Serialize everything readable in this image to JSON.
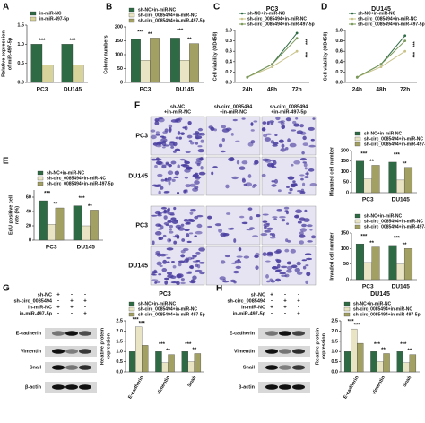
{
  "figure": {
    "panel_labels": [
      "A",
      "B",
      "C",
      "D",
      "E",
      "F",
      "G",
      "H"
    ],
    "f_columns": [
      [
        "sh-NC",
        "+in-miR-NC"
      ],
      [
        "sh-circ_0085494",
        "+in-miR-NC"
      ],
      [
        "sh-circ_0085494",
        "+in-miR-497-5p"
      ]
    ],
    "f_rows": [
      "PC3",
      "DU145",
      "PC3",
      "DU145"
    ],
    "blots": [
      {
        "rows": [
          {
            "label": "sh-NC",
            "signs": [
              "+",
              "-",
              "-"
            ]
          },
          {
            "label": "sh-circ_0085494",
            "signs": [
              "-",
              "+",
              "+"
            ]
          },
          {
            "label": "in-miR-NC",
            "signs": [
              "+",
              "+",
              "-"
            ]
          },
          {
            "label": "in-miR-497-5p",
            "signs": [
              "-",
              "-",
              "+"
            ]
          }
        ],
        "proteins": [
          "E-cadherin",
          "Vimentin",
          "Snail",
          "β-actin"
        ]
      },
      {
        "rows": [
          {
            "label": "sh-NC",
            "signs": [
              "+",
              "-",
              "-"
            ]
          },
          {
            "label": "sh-circ_0085494",
            "signs": [
              "-",
              "+",
              "+"
            ]
          },
          {
            "label": "in-miR-NC",
            "signs": [
              "+",
              "+",
              "-"
            ]
          },
          {
            "label": "in-miR-497-5p",
            "signs": [
              "-",
              "-",
              "+"
            ]
          }
        ],
        "proteins": [
          "E-cadherin",
          "Vimentin",
          "Snail",
          "β-actin"
        ]
      }
    ]
  },
  "chart_data": [
    {
      "type": "bar",
      "ylabel": [
        "Relative expression",
        "of miR-497-5p"
      ],
      "categories": [
        "PC3",
        "DU145"
      ],
      "series": [
        {
          "name": "in-miR-NC",
          "color": "#2e6a44",
          "values": [
            1.0,
            1.0
          ]
        },
        {
          "name": "in-miR-497-5p",
          "color": "#d8d39a",
          "values": [
            0.45,
            0.45
          ]
        }
      ],
      "ylim": [
        0,
        1.5
      ],
      "yticks": [
        {
          "value": 0,
          "label": "0.0"
        },
        0.5,
        {
          "value": 1,
          "label": "1.0"
        },
        1.5
      ],
      "annotations": [
        "***",
        "***"
      ]
    },
    {
      "type": "bar",
      "ylabel": "Colony numbers",
      "categories": [
        "PC3",
        "DU145"
      ],
      "series": [
        {
          "name": "sh-NC+in-miR-NC",
          "color": "#2e6a44",
          "values": [
            155,
            160
          ]
        },
        {
          "name": "sh-circ_0085494+in-miR-NC",
          "color": "#e8e4c4",
          "values": [
            80,
            80
          ]
        },
        {
          "name": "sh-circ_0085494+in-miR-497-5p",
          "color": "#a3a064",
          "values": [
            160,
            140
          ]
        }
      ],
      "ylim": [
        0,
        200
      ],
      "yticks": [
        0,
        50,
        100,
        150,
        200
      ],
      "annotations": [
        "***",
        "**",
        "***",
        "**"
      ]
    },
    {
      "type": "line",
      "title": "PC3",
      "ylabel": "Cell viability (OD450)",
      "categories": [
        "24h",
        "48h",
        "72h"
      ],
      "series": [
        {
          "name": "sh-NC+in-miR-NC",
          "color": "#2e6a44",
          "values": [
            0.1,
            0.35,
            0.95
          ]
        },
        {
          "name": "sh-circ_0085494+in-miR-NC",
          "color": "#c9c38a",
          "values": [
            0.1,
            0.3,
            0.6
          ]
        },
        {
          "name": "sh-circ_0085494+in-miR-497-5p",
          "color": "#7c9a5c",
          "values": [
            0.1,
            0.35,
            0.85
          ]
        }
      ],
      "ylim": [
        0,
        1.0
      ],
      "yticks": [
        {
          "value": 0,
          "label": "0.0"
        },
        0.2,
        0.4,
        0.6,
        0.8,
        {
          "value": 1,
          "label": "1.0"
        }
      ],
      "annotations": [
        "***",
        "***"
      ]
    },
    {
      "type": "line",
      "title": "DU145",
      "ylabel": "Cell viability (OD450)",
      "categories": [
        "24h",
        "48h",
        "72h"
      ],
      "series": [
        {
          "name": "sh-NC+in-miR-NC",
          "color": "#2e6a44",
          "values": [
            0.1,
            0.35,
            0.9
          ]
        },
        {
          "name": "sh-circ_0085494+in-miR-NC",
          "color": "#c9c38a",
          "values": [
            0.1,
            0.3,
            0.6
          ]
        },
        {
          "name": "sh-circ_0085494+in-miR-497-5p",
          "color": "#7c9a5c",
          "values": [
            0.1,
            0.35,
            0.8
          ]
        }
      ],
      "ylim": [
        0,
        1.0
      ],
      "yticks": [
        {
          "value": 0,
          "label": "0.0"
        },
        0.2,
        0.4,
        0.6,
        0.8,
        {
          "value": 1,
          "label": "1.0"
        }
      ],
      "annotations": [
        "***",
        "***"
      ]
    },
    {
      "type": "bar",
      "ylabel": [
        "EdU positive cell",
        "rate (%)"
      ],
      "categories": [
        "PC3",
        "DU145"
      ],
      "series": [
        {
          "name": "sh-NC+in-miR-NC",
          "color": "#2e6a44",
          "values": [
            55,
            48
          ]
        },
        {
          "name": "sh-circ_0085494+in-miR-NC",
          "color": "#e8e4c4",
          "values": [
            22,
            20
          ]
        },
        {
          "name": "sh-circ_0085494+in-miR-497-5p",
          "color": "#a3a064",
          "values": [
            45,
            42
          ]
        }
      ],
      "ylim": [
        0,
        70
      ],
      "yticks": [
        0,
        20,
        40,
        60
      ],
      "annotations": [
        "***",
        "**",
        "***",
        "**"
      ]
    },
    {
      "type": "bar",
      "ylabel": "Migrated cell number",
      "categories": [
        "PC3",
        "DU145"
      ],
      "series": [
        {
          "name": "sh-NC+in-miR-NC",
          "color": "#2e6a44",
          "values": [
            150,
            145
          ]
        },
        {
          "name": "sh-circ_0085494+in-miR-NC",
          "color": "#e8e4c4",
          "values": [
            65,
            60
          ]
        },
        {
          "name": "sh-circ_0085494+in-miR-497-5p",
          "color": "#a3a064",
          "values": [
            130,
            120
          ]
        }
      ],
      "ylim": [
        0,
        200
      ],
      "yticks": [
        0,
        50,
        100,
        150,
        200
      ],
      "annotations": [
        "***",
        "**",
        "***",
        "**"
      ]
    },
    {
      "type": "bar",
      "ylabel": "Invaded cell number",
      "categories": [
        "PC3",
        "DU145"
      ],
      "series": [
        {
          "name": "sh-NC+in-miR-NC",
          "color": "#2e6a44",
          "values": [
            115,
            110
          ]
        },
        {
          "name": "sh-circ_0085494+in-miR-NC",
          "color": "#e8e4c4",
          "values": [
            55,
            50
          ]
        },
        {
          "name": "sh-circ_0085494+in-miR-497-5p",
          "color": "#a3a064",
          "values": [
            105,
            100
          ]
        }
      ],
      "ylim": [
        0,
        150
      ],
      "yticks": [
        0,
        50,
        100,
        150
      ],
      "annotations": [
        "***",
        "**",
        "***",
        "**"
      ]
    },
    {
      "type": "bar",
      "title": "PC3",
      "ylabel": [
        "Relative protein",
        "expression"
      ],
      "categories": [
        "E-cadherin",
        "Vimentin",
        "Snail"
      ],
      "series": [
        {
          "name": "sh-NC+in-miR-NC",
          "color": "#2e6a44",
          "values": [
            1.0,
            1.0,
            1.0
          ]
        },
        {
          "name": "sh-circ_0085494+in-miR-NC",
          "color": "#e8e4c4",
          "values": [
            2.2,
            0.45,
            0.5
          ]
        },
        {
          "name": "sh-circ_0085494+in-miR-497-5p",
          "color": "#a3a064",
          "values": [
            1.3,
            0.85,
            0.9
          ]
        }
      ],
      "ylim": [
        0,
        2.5
      ],
      "yticks": [
        {
          "value": 0,
          "label": "0.0"
        },
        0.5,
        {
          "value": 1,
          "label": "1.0"
        },
        1.5,
        {
          "value": 2,
          "label": "2.0"
        },
        2.5
      ],
      "annotations": [
        "***",
        "***",
        "***",
        "**",
        "***",
        "**"
      ]
    },
    {
      "type": "bar",
      "title": "DU145",
      "ylabel": [
        "Relative protein",
        "expression"
      ],
      "categories": [
        "E-cadherin",
        "Vimentin",
        "Snail"
      ],
      "series": [
        {
          "name": "sh-NC+in-miR-NC",
          "color": "#2e6a44",
          "values": [
            1.0,
            1.0,
            1.0
          ]
        },
        {
          "name": "sh-circ_0085494+in-miR-NC",
          "color": "#e8e4c4",
          "values": [
            2.1,
            0.5,
            0.45
          ]
        },
        {
          "name": "sh-circ_0085494+in-miR-497-5p",
          "color": "#a3a064",
          "values": [
            1.4,
            0.9,
            0.85
          ]
        }
      ],
      "ylim": [
        0,
        2.5
      ],
      "yticks": [
        {
          "value": 0,
          "label": "0.0"
        },
        0.5,
        {
          "value": 1,
          "label": "1.0"
        },
        1.5,
        {
          "value": 2,
          "label": "2.0"
        },
        2.5
      ],
      "annotations": [
        "***",
        "***",
        "***",
        "**",
        "***",
        "**"
      ]
    }
  ]
}
